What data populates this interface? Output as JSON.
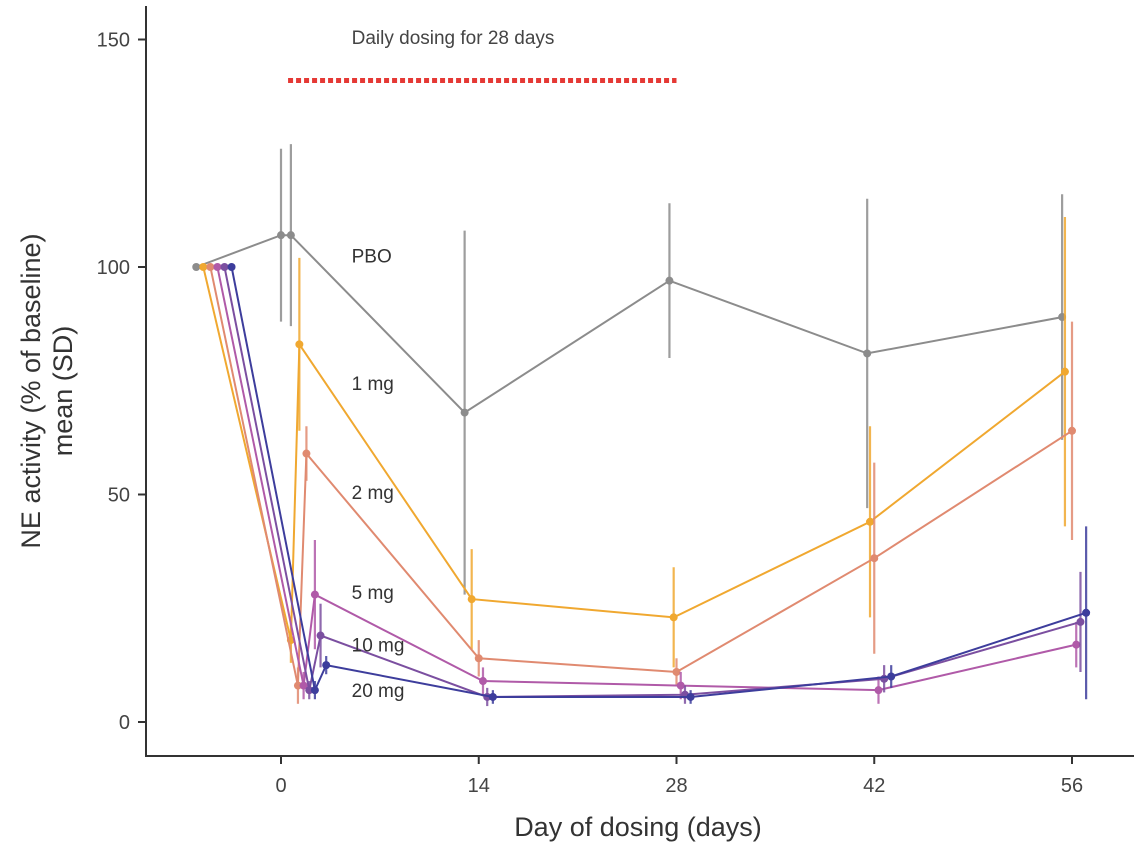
{
  "chart_data": {
    "type": "line",
    "title": "",
    "xlabel": "Day of dosing (days)",
    "ylabel_line1": "NE activity (% of baseline)",
    "ylabel_line2": "mean (SD)",
    "xlim": [
      -9,
      60
    ],
    "ylim": [
      -5,
      158
    ],
    "x_ticks": [
      0,
      14,
      28,
      42,
      56
    ],
    "x_tick_labels": [
      "0",
      "14",
      "28",
      "42",
      "56"
    ],
    "y_ticks": [
      0,
      50,
      100,
      150
    ],
    "y_tick_labels": [
      "0",
      "50",
      "100",
      "150"
    ],
    "grid": false,
    "annotation": {
      "text": "Daily dosing for 28 days",
      "x_text": 5,
      "y_text": 149,
      "bar_x_start": 0.5,
      "bar_x_end": 28,
      "bar_y": 141,
      "bar_color": "#e53935"
    },
    "series": [
      {
        "name": "PBO",
        "color": "#8c8c8c",
        "label_x": 5,
        "label_y": 101,
        "points": [
          {
            "x": -6,
            "y": 100,
            "err": 0
          },
          {
            "x": 0,
            "y": 107,
            "err": 19
          },
          {
            "x": 0.7,
            "y": 107,
            "err": 20
          },
          {
            "x": 13,
            "y": 68,
            "err": 40
          },
          {
            "x": 27.5,
            "y": 97,
            "err": 17
          },
          {
            "x": 41.5,
            "y": 81,
            "err": 34
          },
          {
            "x": 55.3,
            "y": 89,
            "err": 27
          }
        ]
      },
      {
        "name": "1 mg",
        "color": "#f0a830",
        "label_x": 5,
        "label_y": 73,
        "points": [
          {
            "x": -5.5,
            "y": 100,
            "err": 0
          },
          {
            "x": 0.7,
            "y": 18,
            "err": 5
          },
          {
            "x": 1.3,
            "y": 83,
            "err": 19
          },
          {
            "x": 13.5,
            "y": 27,
            "err": 11
          },
          {
            "x": 27.8,
            "y": 23,
            "err": 11
          },
          {
            "x": 41.7,
            "y": 44,
            "err": 21
          },
          {
            "x": 55.5,
            "y": 77,
            "err": 34
          }
        ]
      },
      {
        "name": "2 mg",
        "color": "#e08a70",
        "label_x": 5,
        "label_y": 49,
        "points": [
          {
            "x": -5,
            "y": 100,
            "err": 0
          },
          {
            "x": 1.2,
            "y": 8,
            "err": 4
          },
          {
            "x": 1.8,
            "y": 59,
            "err": 6
          },
          {
            "x": 14,
            "y": 14,
            "err": 4
          },
          {
            "x": 28,
            "y": 11,
            "err": 3
          },
          {
            "x": 42,
            "y": 36,
            "err": 21
          },
          {
            "x": 56,
            "y": 64,
            "err": 24
          }
        ]
      },
      {
        "name": "5 mg",
        "color": "#b05aa8",
        "label_x": 5,
        "label_y": 27,
        "points": [
          {
            "x": -4.5,
            "y": 100,
            "err": 0
          },
          {
            "x": 1.6,
            "y": 8,
            "err": 3
          },
          {
            "x": 2.4,
            "y": 28,
            "err": 12
          },
          {
            "x": 14.3,
            "y": 9,
            "err": 3
          },
          {
            "x": 28.3,
            "y": 8,
            "err": 3
          },
          {
            "x": 42.3,
            "y": 7,
            "err": 3
          },
          {
            "x": 56.3,
            "y": 17,
            "err": 5
          }
        ]
      },
      {
        "name": "10 mg",
        "color": "#7b4fa0",
        "label_x": 5,
        "label_y": 15.5,
        "points": [
          {
            "x": -4,
            "y": 100,
            "err": 0
          },
          {
            "x": 2.0,
            "y": 7,
            "err": 2
          },
          {
            "x": 2.8,
            "y": 19,
            "err": 7
          },
          {
            "x": 14.6,
            "y": 5.5,
            "err": 2
          },
          {
            "x": 28.6,
            "y": 6,
            "err": 2
          },
          {
            "x": 42.7,
            "y": 9.5,
            "err": 3
          },
          {
            "x": 56.6,
            "y": 22,
            "err": 11
          }
        ]
      },
      {
        "name": "20 mg",
        "color": "#3d3d9c",
        "label_x": 5,
        "label_y": 5.5,
        "points": [
          {
            "x": -3.5,
            "y": 100,
            "err": 0
          },
          {
            "x": 2.4,
            "y": 7,
            "err": 2
          },
          {
            "x": 3.2,
            "y": 12.5,
            "err": 2
          },
          {
            "x": 15,
            "y": 5.5,
            "err": 1.5
          },
          {
            "x": 29,
            "y": 5.5,
            "err": 1.5
          },
          {
            "x": 43.2,
            "y": 10,
            "err": 2.5
          },
          {
            "x": 57,
            "y": 24,
            "err": 19
          }
        ]
      }
    ]
  }
}
